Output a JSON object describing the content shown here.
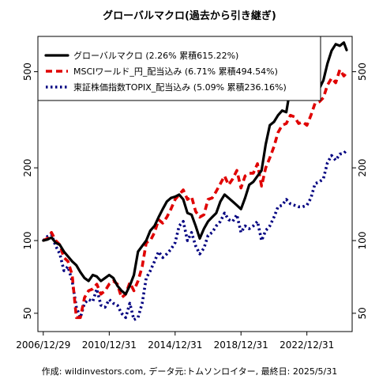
{
  "chart_data": {
    "type": "line",
    "title": "グローバルマクロ(過去から引き継ぎ)",
    "y_scale": "log",
    "ylim": [
      42,
      700
    ],
    "xlim": [
      "2006-09-01",
      "2025-09-30"
    ],
    "y_ticks": [
      50,
      100,
      200,
      500
    ],
    "x_ticks": [
      "2006/12/29",
      "2010/12/31",
      "2014/12/31",
      "2018/12/31",
      "2022/12/31"
    ],
    "legend_position": "top-left",
    "footer": "作成: wildinvestors.com, データ元:トムソンロイター, 最終日: 2025/5/31",
    "series": [
      {
        "name": "グローバルマクロ (2.26% 累積615.22%)",
        "color": "#000000",
        "style": "solid",
        "points": [
          [
            "2006-12-29",
            100
          ],
          [
            "2007-03-31",
            101
          ],
          [
            "2007-06-30",
            103
          ],
          [
            "2007-09-30",
            98
          ],
          [
            "2007-12-31",
            96
          ],
          [
            "2008-03-31",
            90
          ],
          [
            "2008-06-30",
            86
          ],
          [
            "2008-09-30",
            82
          ],
          [
            "2008-12-31",
            79
          ],
          [
            "2009-03-31",
            74
          ],
          [
            "2009-06-30",
            70
          ],
          [
            "2009-09-30",
            68
          ],
          [
            "2009-12-31",
            72
          ],
          [
            "2010-03-31",
            71
          ],
          [
            "2010-06-30",
            68
          ],
          [
            "2010-09-30",
            70
          ],
          [
            "2010-12-31",
            72
          ],
          [
            "2011-03-31",
            70
          ],
          [
            "2011-06-30",
            65
          ],
          [
            "2011-09-30",
            62
          ],
          [
            "2011-12-31",
            60
          ],
          [
            "2012-03-31",
            65
          ],
          [
            "2012-06-30",
            72
          ],
          [
            "2012-09-30",
            90
          ],
          [
            "2012-12-31",
            95
          ],
          [
            "2013-03-31",
            100
          ],
          [
            "2013-06-30",
            110
          ],
          [
            "2013-09-30",
            115
          ],
          [
            "2013-12-31",
            125
          ],
          [
            "2014-03-31",
            135
          ],
          [
            "2014-06-30",
            145
          ],
          [
            "2014-09-30",
            150
          ],
          [
            "2014-12-31",
            152
          ],
          [
            "2015-03-31",
            155
          ],
          [
            "2015-06-30",
            148
          ],
          [
            "2015-09-30",
            130
          ],
          [
            "2015-12-31",
            128
          ],
          [
            "2016-03-31",
            115
          ],
          [
            "2016-06-30",
            102
          ],
          [
            "2016-09-30",
            112
          ],
          [
            "2016-12-31",
            120
          ],
          [
            "2017-03-31",
            125
          ],
          [
            "2017-06-30",
            130
          ],
          [
            "2017-09-30",
            145
          ],
          [
            "2017-12-31",
            155
          ],
          [
            "2018-03-31",
            150
          ],
          [
            "2018-06-30",
            145
          ],
          [
            "2018-09-30",
            140
          ],
          [
            "2018-12-31",
            135
          ],
          [
            "2019-03-31",
            150
          ],
          [
            "2019-06-30",
            170
          ],
          [
            "2019-09-30",
            175
          ],
          [
            "2019-12-31",
            185
          ],
          [
            "2020-03-31",
            195
          ],
          [
            "2020-06-30",
            250
          ],
          [
            "2020-09-30",
            300
          ],
          [
            "2020-12-31",
            310
          ],
          [
            "2021-03-31",
            330
          ],
          [
            "2021-06-30",
            345
          ],
          [
            "2021-09-30",
            340
          ],
          [
            "2021-12-31",
            430
          ],
          [
            "2022-03-31",
            440
          ],
          [
            "2022-06-30",
            425
          ],
          [
            "2022-09-30",
            385
          ],
          [
            "2022-12-31",
            400
          ],
          [
            "2023-03-31",
            430
          ],
          [
            "2023-06-30",
            420
          ],
          [
            "2023-09-30",
            425
          ],
          [
            "2023-12-31",
            460
          ],
          [
            "2024-03-31",
            540
          ],
          [
            "2024-06-30",
            610
          ],
          [
            "2024-09-30",
            650
          ],
          [
            "2024-12-31",
            640
          ],
          [
            "2025-03-31",
            660
          ],
          [
            "2025-05-31",
            615
          ]
        ]
      },
      {
        "name": "MSCIワールド_円_配当込み (6.71% 累積494.54%)",
        "color": "#e00000",
        "style": "dashed",
        "points": [
          [
            "2006-12-29",
            100
          ],
          [
            "2007-03-31",
            102
          ],
          [
            "2007-06-30",
            108
          ],
          [
            "2007-09-30",
            100
          ],
          [
            "2007-12-31",
            96
          ],
          [
            "2008-03-31",
            85
          ],
          [
            "2008-06-30",
            82
          ],
          [
            "2008-09-30",
            72
          ],
          [
            "2008-12-31",
            48
          ],
          [
            "2009-03-31",
            48
          ],
          [
            "2009-06-30",
            58
          ],
          [
            "2009-09-30",
            62
          ],
          [
            "2009-12-31",
            63
          ],
          [
            "2010-03-31",
            66
          ],
          [
            "2010-06-30",
            60
          ],
          [
            "2010-09-30",
            62
          ],
          [
            "2010-12-31",
            66
          ],
          [
            "2011-03-31",
            68
          ],
          [
            "2011-06-30",
            66
          ],
          [
            "2011-09-30",
            58
          ],
          [
            "2011-12-31",
            60
          ],
          [
            "2012-03-31",
            67
          ],
          [
            "2012-06-30",
            62
          ],
          [
            "2012-09-30",
            68
          ],
          [
            "2012-12-31",
            78
          ],
          [
            "2013-03-31",
            98
          ],
          [
            "2013-06-30",
            100
          ],
          [
            "2013-09-30",
            108
          ],
          [
            "2013-12-31",
            122
          ],
          [
            "2014-03-31",
            118
          ],
          [
            "2014-06-30",
            125
          ],
          [
            "2014-09-30",
            135
          ],
          [
            "2014-12-31",
            148
          ],
          [
            "2015-03-31",
            155
          ],
          [
            "2015-06-30",
            162
          ],
          [
            "2015-09-30",
            148
          ],
          [
            "2015-12-31",
            152
          ],
          [
            "2016-03-31",
            132
          ],
          [
            "2016-06-30",
            125
          ],
          [
            "2016-09-30",
            128
          ],
          [
            "2016-12-31",
            148
          ],
          [
            "2017-03-31",
            150
          ],
          [
            "2017-06-30",
            160
          ],
          [
            "2017-09-30",
            172
          ],
          [
            "2017-12-31",
            185
          ],
          [
            "2018-03-31",
            170
          ],
          [
            "2018-06-30",
            180
          ],
          [
            "2018-09-30",
            195
          ],
          [
            "2018-12-31",
            165
          ],
          [
            "2019-03-31",
            185
          ],
          [
            "2019-06-30",
            190
          ],
          [
            "2019-09-30",
            190
          ],
          [
            "2019-12-31",
            208
          ],
          [
            "2020-03-31",
            168
          ],
          [
            "2020-06-30",
            200
          ],
          [
            "2020-09-30",
            220
          ],
          [
            "2020-12-31",
            245
          ],
          [
            "2021-03-31",
            280
          ],
          [
            "2021-06-30",
            300
          ],
          [
            "2021-09-30",
            305
          ],
          [
            "2021-12-31",
            330
          ],
          [
            "2022-03-31",
            325
          ],
          [
            "2022-06-30",
            305
          ],
          [
            "2022-09-30",
            310
          ],
          [
            "2022-12-31",
            300
          ],
          [
            "2023-03-31",
            330
          ],
          [
            "2023-06-30",
            370
          ],
          [
            "2023-09-30",
            375
          ],
          [
            "2023-12-31",
            390
          ],
          [
            "2024-03-31",
            440
          ],
          [
            "2024-06-30",
            470
          ],
          [
            "2024-09-30",
            450
          ],
          [
            "2024-12-31",
            510
          ],
          [
            "2025-03-31",
            480
          ],
          [
            "2025-05-31",
            494
          ]
        ]
      },
      {
        "name": "東証株価指数TOPIX_配当込み (5.09% 累積236.16%)",
        "color": "#000080",
        "style": "dotted",
        "points": [
          [
            "2006-12-29",
            100
          ],
          [
            "2007-03-31",
            104
          ],
          [
            "2007-06-30",
            106
          ],
          [
            "2007-09-30",
            95
          ],
          [
            "2007-12-31",
            88
          ],
          [
            "2008-03-31",
            75
          ],
          [
            "2008-06-30",
            78
          ],
          [
            "2008-09-30",
            68
          ],
          [
            "2008-12-31",
            53
          ],
          [
            "2009-03-31",
            48
          ],
          [
            "2009-06-30",
            55
          ],
          [
            "2009-09-30",
            57
          ],
          [
            "2009-12-31",
            56
          ],
          [
            "2010-03-31",
            63
          ],
          [
            "2010-06-30",
            54
          ],
          [
            "2010-09-30",
            53
          ],
          [
            "2010-12-31",
            57
          ],
          [
            "2011-03-31",
            55
          ],
          [
            "2011-06-30",
            54
          ],
          [
            "2011-09-30",
            50
          ],
          [
            "2011-12-31",
            48
          ],
          [
            "2012-03-31",
            55
          ],
          [
            "2012-06-30",
            47
          ],
          [
            "2012-09-30",
            48
          ],
          [
            "2012-12-31",
            55
          ],
          [
            "2013-03-31",
            70
          ],
          [
            "2013-06-30",
            75
          ],
          [
            "2013-09-30",
            82
          ],
          [
            "2013-12-31",
            90
          ],
          [
            "2014-03-31",
            85
          ],
          [
            "2014-06-30",
            88
          ],
          [
            "2014-09-30",
            92
          ],
          [
            "2014-12-31",
            98
          ],
          [
            "2015-03-31",
            115
          ],
          [
            "2015-06-30",
            120
          ],
          [
            "2015-09-30",
            100
          ],
          [
            "2015-12-31",
            108
          ],
          [
            "2016-03-31",
            95
          ],
          [
            "2016-06-30",
            88
          ],
          [
            "2016-09-30",
            93
          ],
          [
            "2016-12-31",
            105
          ],
          [
            "2017-03-31",
            108
          ],
          [
            "2017-06-30",
            115
          ],
          [
            "2017-09-30",
            120
          ],
          [
            "2017-12-31",
            130
          ],
          [
            "2018-03-31",
            122
          ],
          [
            "2018-06-30",
            120
          ],
          [
            "2018-09-30",
            128
          ],
          [
            "2018-12-31",
            108
          ],
          [
            "2019-03-31",
            115
          ],
          [
            "2019-06-30",
            112
          ],
          [
            "2019-09-30",
            115
          ],
          [
            "2019-12-31",
            120
          ],
          [
            "2020-03-31",
            100
          ],
          [
            "2020-06-30",
            110
          ],
          [
            "2020-09-30",
            115
          ],
          [
            "2020-12-31",
            125
          ],
          [
            "2021-03-31",
            138
          ],
          [
            "2021-06-30",
            140
          ],
          [
            "2021-09-30",
            148
          ],
          [
            "2021-12-31",
            142
          ],
          [
            "2022-03-31",
            140
          ],
          [
            "2022-06-30",
            138
          ],
          [
            "2022-09-30",
            138
          ],
          [
            "2022-12-31",
            140
          ],
          [
            "2023-03-31",
            150
          ],
          [
            "2023-06-30",
            172
          ],
          [
            "2023-09-30",
            175
          ],
          [
            "2023-12-31",
            180
          ],
          [
            "2024-03-31",
            210
          ],
          [
            "2024-06-30",
            225
          ],
          [
            "2024-09-30",
            215
          ],
          [
            "2024-12-31",
            228
          ],
          [
            "2025-03-31",
            230
          ],
          [
            "2025-05-31",
            236
          ]
        ]
      }
    ]
  }
}
